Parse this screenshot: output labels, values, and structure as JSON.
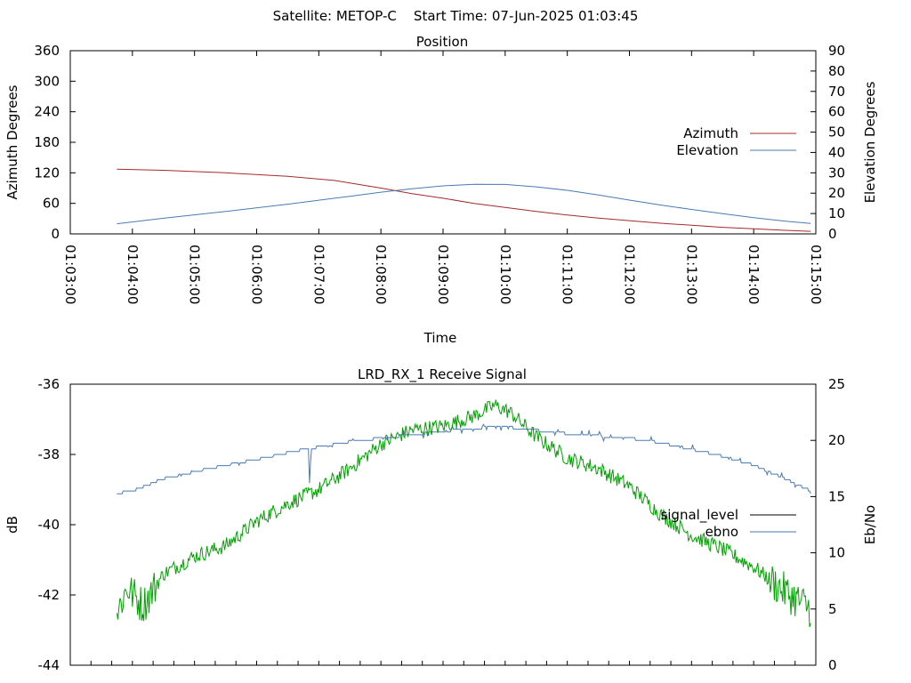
{
  "page_title": "Satellite: METOP-C    Start Time: 07-Jun-2025 01:03:45",
  "chart_data": [
    {
      "type": "line",
      "title": "Position",
      "xlabel": "Time",
      "ylabel": "Azimuth Degrees",
      "y2label": "Elevation Degrees",
      "x_ticks": [
        "01:03:00",
        "01:04:00",
        "01:05:00",
        "01:06:00",
        "01:07:00",
        "01:08:00",
        "01:09:00",
        "01:10:00",
        "01:11:00",
        "01:12:00",
        "01:13:00",
        "01:14:00",
        "01:15:00"
      ],
      "xlim": [
        "01:03:00",
        "01:15:00"
      ],
      "ylim": [
        0,
        360
      ],
      "y_ticks": [
        0,
        60,
        120,
        180,
        240,
        300,
        360
      ],
      "y2lim": [
        0,
        90
      ],
      "y2_ticks": [
        0,
        10,
        20,
        30,
        40,
        50,
        60,
        70,
        80,
        90
      ],
      "grid": false,
      "legend_position": "right",
      "series": [
        {
          "name": "Azimuth",
          "axis": "left",
          "color": "#a52a2a",
          "points": [
            [
              "01:03:45",
              127
            ],
            [
              "01:04:30",
              125
            ],
            [
              "01:05:30",
              120
            ],
            [
              "01:06:30",
              113
            ],
            [
              "01:07:15",
              105
            ],
            [
              "01:07:30",
              100
            ],
            [
              "01:08:00",
              90
            ],
            [
              "01:08:30",
              79
            ],
            [
              "01:09:00",
              70
            ],
            [
              "01:09:30",
              60
            ],
            [
              "01:10:00",
              52
            ],
            [
              "01:10:30",
              44
            ],
            [
              "01:11:00",
              37
            ],
            [
              "01:11:30",
              31
            ],
            [
              "01:12:00",
              26
            ],
            [
              "01:12:30",
              21
            ],
            [
              "01:13:00",
              17
            ],
            [
              "01:13:30",
              13
            ],
            [
              "01:14:00",
              10
            ],
            [
              "01:14:30",
              7
            ],
            [
              "01:14:55",
              5
            ]
          ]
        },
        {
          "name": "Elevation",
          "axis": "right",
          "color": "#4a7ab5",
          "points": [
            [
              "01:03:45",
              5
            ],
            [
              "01:04:30",
              7.7
            ],
            [
              "01:05:30",
              11
            ],
            [
              "01:06:30",
              14.6
            ],
            [
              "01:07:30",
              18.5
            ],
            [
              "01:08:00",
              20.5
            ],
            [
              "01:08:30",
              22.2
            ],
            [
              "01:09:00",
              23.6
            ],
            [
              "01:09:30",
              24.4
            ],
            [
              "01:10:00",
              24.3
            ],
            [
              "01:10:30",
              23.1
            ],
            [
              "01:11:00",
              21.4
            ],
            [
              "01:11:30",
              19.1
            ],
            [
              "01:12:00",
              16.6
            ],
            [
              "01:12:30",
              14.2
            ],
            [
              "01:13:00",
              12
            ],
            [
              "01:13:30",
              9.9
            ],
            [
              "01:14:00",
              8
            ],
            [
              "01:14:30",
              6.3
            ],
            [
              "01:14:55",
              5.1
            ]
          ]
        }
      ]
    },
    {
      "type": "line",
      "title": "LRD_RX_1 Receive Signal",
      "ylabel": "dB",
      "y2label": "Eb/No",
      "xlim": [
        "01:03:00",
        "01:15:00"
      ],
      "x_minor_ticks_every_seconds": 20,
      "ylim": [
        -44,
        -36
      ],
      "y_ticks": [
        -44,
        -42,
        -40,
        -38,
        -36
      ],
      "y2lim": [
        0,
        25
      ],
      "y2_ticks": [
        0,
        5,
        10,
        15,
        20,
        25
      ],
      "grid": false,
      "legend_position": "right",
      "series": [
        {
          "name": "signal_level",
          "axis": "left",
          "color": "#000000",
          "points": []
        },
        {
          "name": "ebno",
          "axis": "right",
          "color": "#4a7ab5",
          "points": [
            [
              "01:03:45",
              15.3
            ],
            [
              "01:04:00",
              15.5
            ],
            [
              "01:04:30",
              16.6
            ],
            [
              "01:05:00",
              17.2
            ],
            [
              "01:05:30",
              17.8
            ],
            [
              "01:06:00",
              18.3
            ],
            [
              "01:06:30",
              18.9
            ],
            [
              "01:06:50",
              19.3
            ],
            [
              "01:06:51",
              16.6
            ],
            [
              "01:06:53",
              19.3
            ],
            [
              "01:07:30",
              19.9
            ],
            [
              "01:08:00",
              20.2
            ],
            [
              "01:08:30",
              20.5
            ],
            [
              "01:09:00",
              20.8
            ],
            [
              "01:09:30",
              21.1
            ],
            [
              "01:10:00",
              21.2
            ],
            [
              "01:10:30",
              20.9
            ],
            [
              "01:11:00",
              20.6
            ],
            [
              "01:11:30",
              20.4
            ],
            [
              "01:12:00",
              20.2
            ],
            [
              "01:12:30",
              19.8
            ],
            [
              "01:13:00",
              19.2
            ],
            [
              "01:13:30",
              18.6
            ],
            [
              "01:14:00",
              17.8
            ],
            [
              "01:14:30",
              16.6
            ],
            [
              "01:14:55",
              15.5
            ]
          ]
        },
        {
          "name": "",
          "axis": "left",
          "color": "#00a000",
          "points": [
            [
              "01:03:45",
              -42.5
            ],
            [
              "01:03:55",
              -41.8
            ],
            [
              "01:04:10",
              -42.3
            ],
            [
              "01:04:30",
              -41.4
            ],
            [
              "01:05:00",
              -40.9
            ],
            [
              "01:05:30",
              -40.6
            ],
            [
              "01:06:00",
              -39.9
            ],
            [
              "01:06:30",
              -39.4
            ],
            [
              "01:07:00",
              -39
            ],
            [
              "01:07:30",
              -38.4
            ],
            [
              "01:08:00",
              -37.7
            ],
            [
              "01:08:30",
              -37.3
            ],
            [
              "01:09:00",
              -37.2
            ],
            [
              "01:09:30",
              -36.9
            ],
            [
              "01:09:50",
              -36.6
            ],
            [
              "01:10:05",
              -36.8
            ],
            [
              "01:10:30",
              -37.5
            ],
            [
              "01:11:00",
              -38.1
            ],
            [
              "01:11:30",
              -38.4
            ],
            [
              "01:12:00",
              -38.9
            ],
            [
              "01:12:30",
              -39.7
            ],
            [
              "01:13:00",
              -40.3
            ],
            [
              "01:13:30",
              -40.7
            ],
            [
              "01:14:00",
              -41.2
            ],
            [
              "01:14:30",
              -41.9
            ],
            [
              "01:14:55",
              -42.4
            ]
          ]
        }
      ]
    }
  ]
}
